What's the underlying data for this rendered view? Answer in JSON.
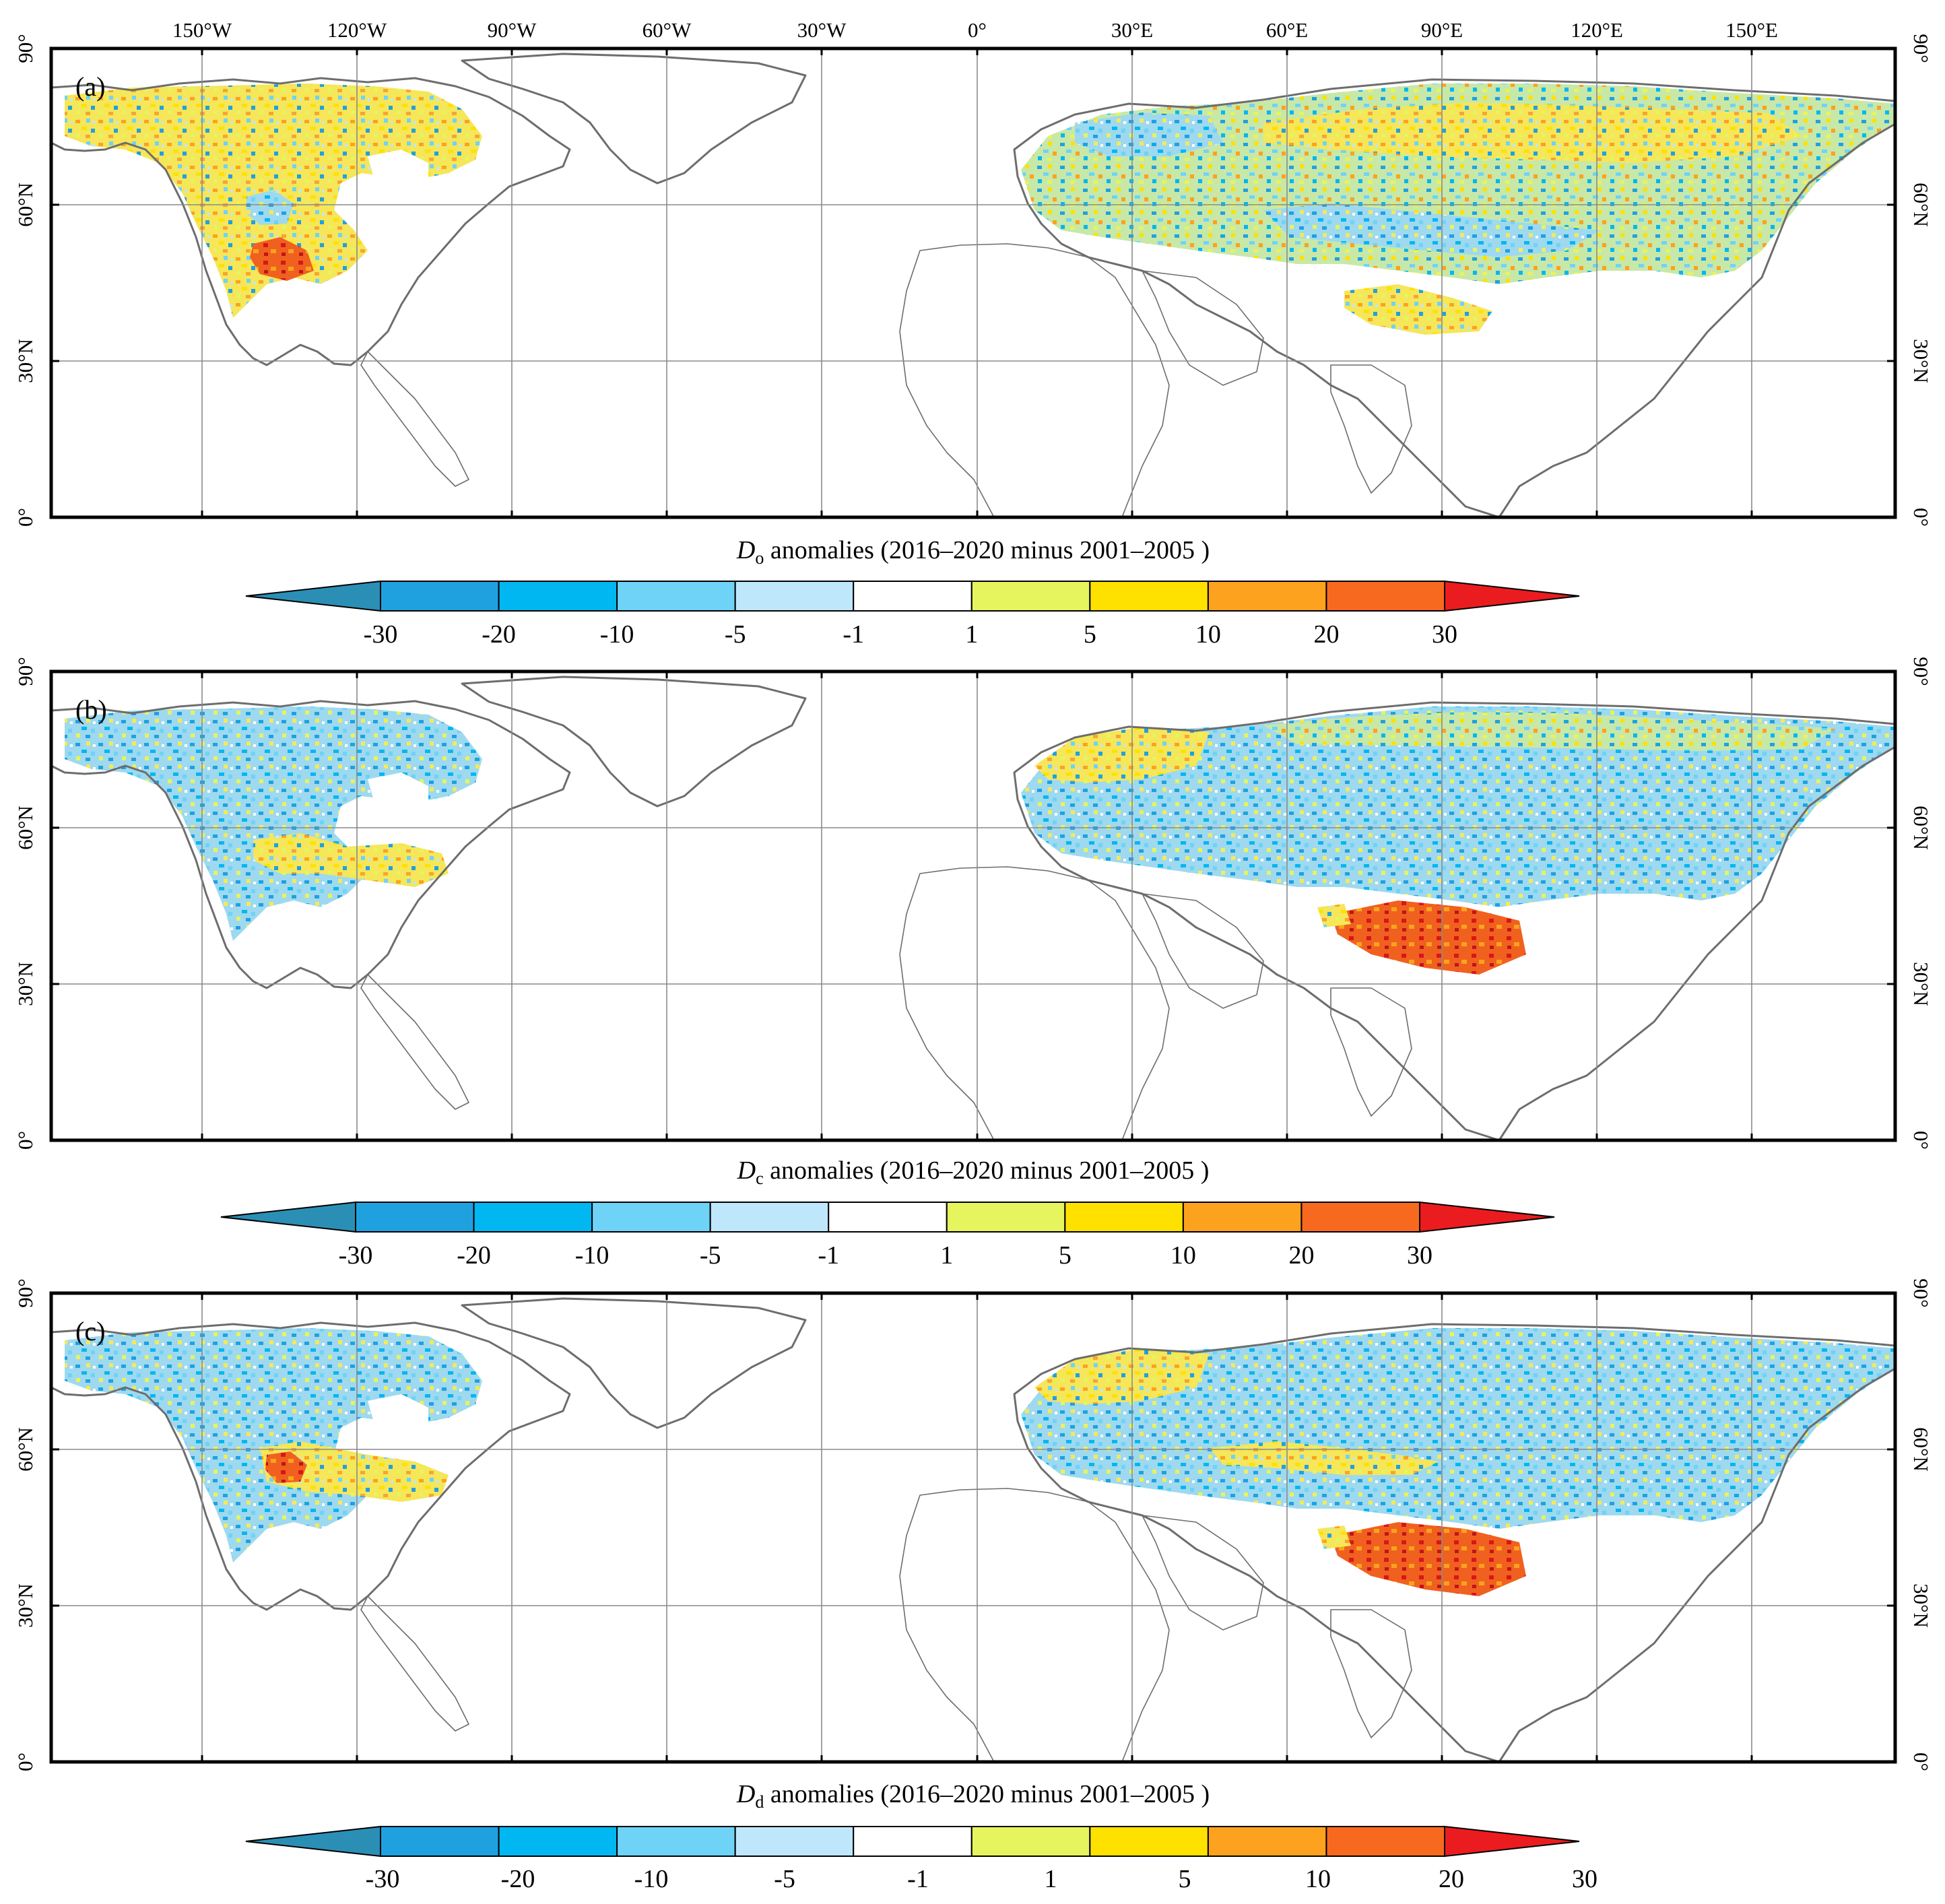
{
  "figure": {
    "lon_labels": [
      "150°W",
      "120°W",
      "90°W",
      "60°W",
      "30°W",
      "0°",
      "30°E",
      "60°E",
      "90°E",
      "120°E",
      "150°E"
    ],
    "lat_labels": [
      "90°",
      "60°N",
      "30°N",
      "0°"
    ],
    "colors": {
      "bins": [
        "#2b8fb5",
        "#1fa1e0",
        "#00b7f1",
        "#6ed3f7",
        "#bfe7fb",
        "#ffffff",
        "#e6f45d",
        "#ffe100",
        "#fca21e",
        "#f7691f",
        "#eb1c1f"
      ],
      "land_outline": "#6d6d6d",
      "grid": "#8a8a8a"
    },
    "panels": [
      {
        "label": "(a)",
        "colorbar": {
          "symbol": "D",
          "subscript": "o",
          "title_rest": " anomalies (2016–2020 minus 2001–2005 )",
          "tick_labels": [
            "-30",
            "-20",
            "-10",
            "-5",
            "-1",
            "1",
            "5",
            "10",
            "20",
            "30"
          ]
        }
      },
      {
        "label": "(b)",
        "colorbar": {
          "symbol": "D",
          "subscript": "c",
          "title_rest": " anomalies (2016–2020 minus 2001–2005 )",
          "tick_labels": [
            "-30",
            "-20",
            "-10",
            "-5",
            "-1",
            "1",
            "5",
            "10",
            "20",
            "30"
          ]
        }
      },
      {
        "label": "(c)",
        "colorbar": {
          "symbol": "D",
          "subscript": "d",
          "title_rest": " anomalies (2016–2020 minus 2001–2005 )",
          "tick_labels": [
            "-30",
            "-20",
            "-10",
            "-5",
            "-1",
            "1",
            "5",
            "10",
            "20",
            "30"
          ]
        }
      }
    ]
  }
}
